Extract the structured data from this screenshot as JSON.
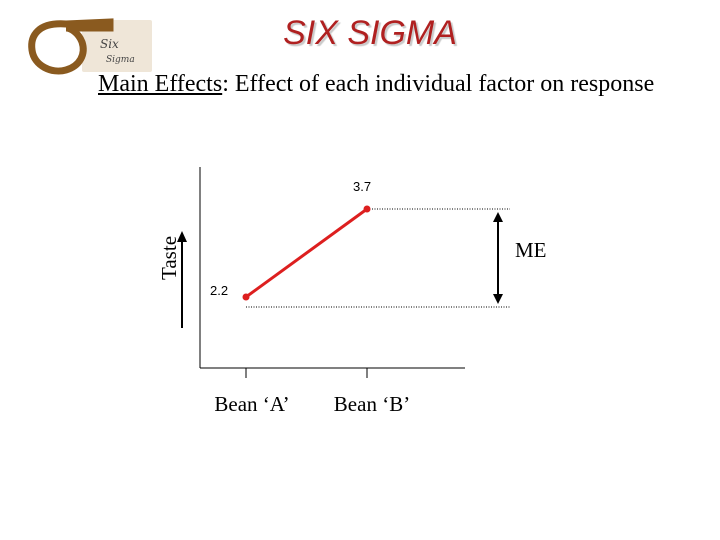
{
  "header": {
    "title": "SIX SIGMA",
    "logo_text": [
      "Six",
      "Sigma"
    ],
    "subtitle_emphasis": "Main Effects",
    "subtitle_rest": ": Effect of each individual factor on response"
  },
  "chart_data": {
    "type": "line",
    "categories": [
      "Bean ‘A’",
      "Bean ‘B’"
    ],
    "values": [
      2.2,
      3.7
    ],
    "value_labels": [
      "2.2",
      "3.7"
    ],
    "ylabel": "Taste",
    "annotation": "ME",
    "line_color": "#dd1f1f",
    "grid": false
  }
}
